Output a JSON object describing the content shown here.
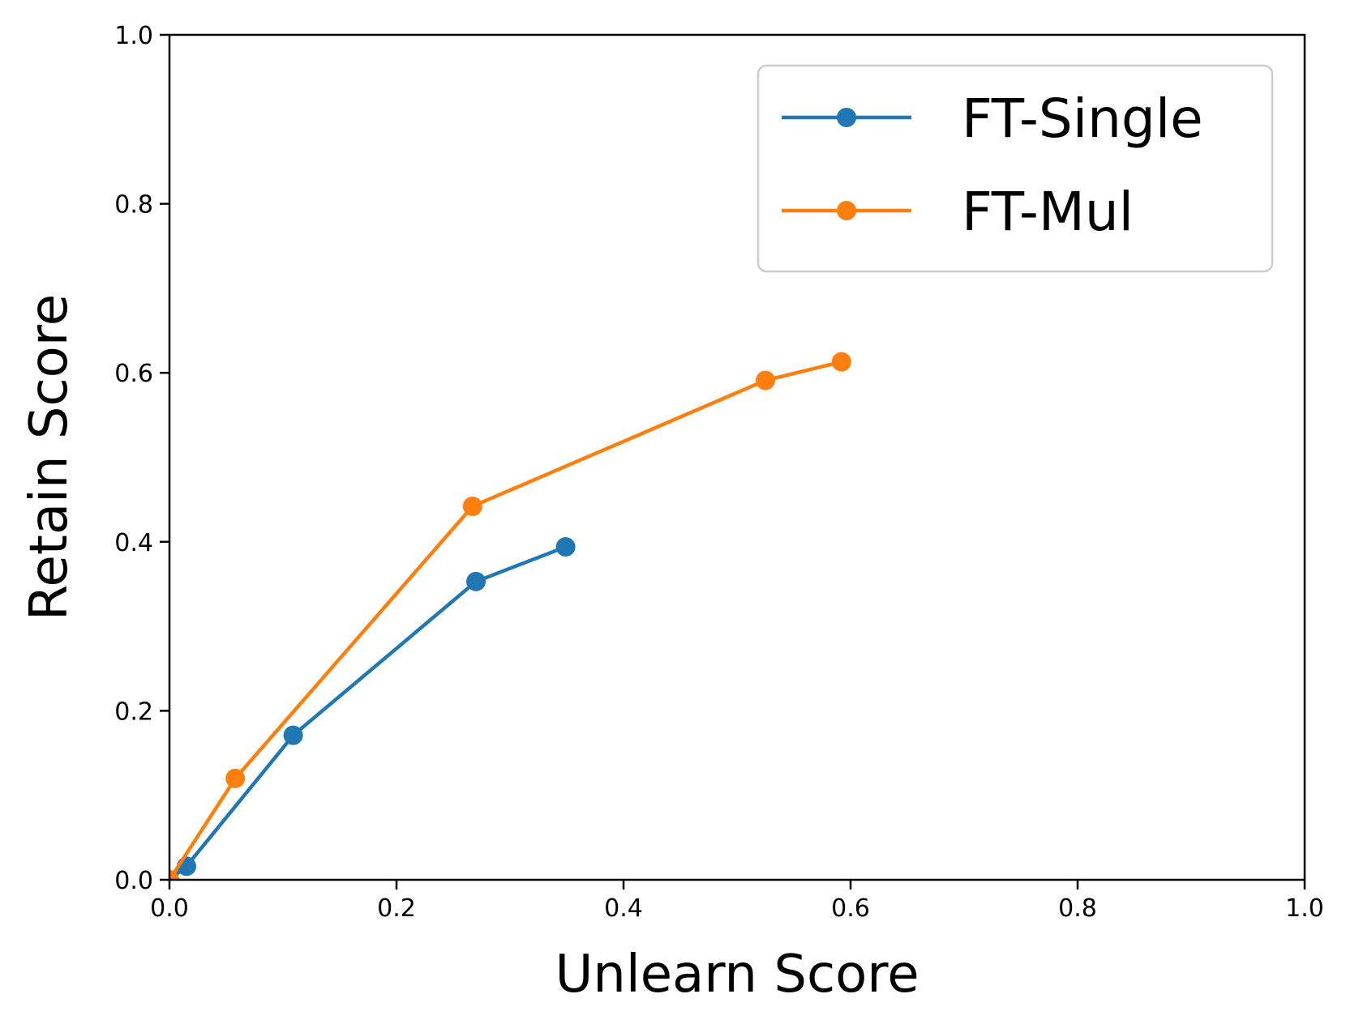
{
  "chart_data": {
    "type": "line",
    "xlabel": "Unlearn Score",
    "ylabel": "Retain Score",
    "xlim": [
      0.0,
      1.0
    ],
    "ylim": [
      0.0,
      1.0
    ],
    "x_ticks": [
      "0.0",
      "0.2",
      "0.4",
      "0.6",
      "0.8",
      "1.0"
    ],
    "y_ticks": [
      "0.0",
      "0.2",
      "0.4",
      "0.6",
      "0.8",
      "1.0"
    ],
    "grid": false,
    "legend_position": "top-right",
    "series": [
      {
        "name": "FT-Single",
        "color": "#1f77b4",
        "x": [
          0.0,
          0.015,
          0.109,
          0.27,
          0.349
        ],
        "y": [
          0.0,
          0.016,
          0.171,
          0.353,
          0.394
        ]
      },
      {
        "name": "FT-Mul",
        "color": "#ff7f0e",
        "x": [
          0.0,
          0.058,
          0.267,
          0.525,
          0.592
        ],
        "y": [
          0.0,
          0.12,
          0.442,
          0.591,
          0.613
        ]
      }
    ]
  }
}
